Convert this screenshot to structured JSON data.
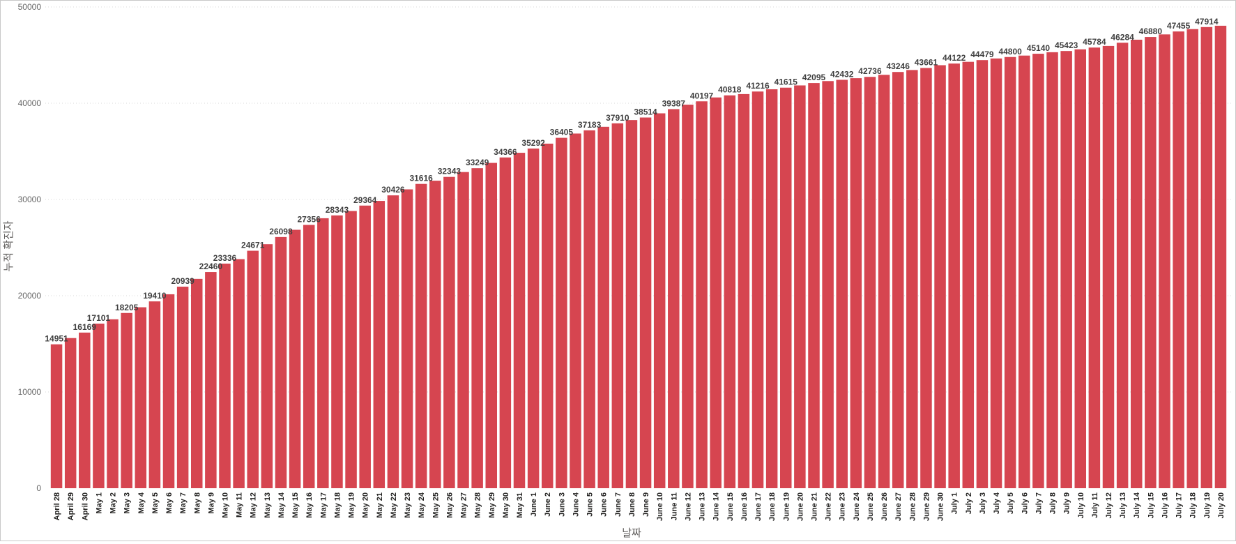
{
  "chart_data": {
    "type": "bar",
    "title": "",
    "xlabel": "날짜",
    "ylabel": "누적 확진자",
    "ylim": [
      0,
      50000
    ],
    "yticks": [
      0,
      10000,
      20000,
      30000,
      40000,
      50000
    ],
    "grid": true,
    "bar_color": "#D64550",
    "categories": [
      "April 28",
      "April 29",
      "April 30",
      "May 1",
      "May 2",
      "May 3",
      "May 4",
      "May 5",
      "May 6",
      "May 7",
      "May 8",
      "May 9",
      "May 10",
      "May 11",
      "May 12",
      "May 13",
      "May 14",
      "May 15",
      "May 16",
      "May 17",
      "May 18",
      "May 19",
      "May 20",
      "May 21",
      "May 22",
      "May 23",
      "May 24",
      "May 25",
      "May 26",
      "May 27",
      "May 28",
      "May 29",
      "May 30",
      "May 31",
      "June 1",
      "June 2",
      "June 3",
      "June 4",
      "June 5",
      "June 6",
      "June 7",
      "June 8",
      "June 9",
      "June 10",
      "June 11",
      "June 12",
      "June 13",
      "June 14",
      "June 15",
      "June 16",
      "June 17",
      "June 18",
      "June 19",
      "June 20",
      "June 21",
      "June 22",
      "June 23",
      "June 24",
      "June 25",
      "June 26",
      "June 27",
      "June 28",
      "June 29",
      "June 30",
      "July 1",
      "July 2",
      "July 3",
      "July 4",
      "July 5",
      "July 6",
      "July 7",
      "July 8",
      "July 9",
      "July 10",
      "July 11",
      "July 12",
      "July 13",
      "July 14",
      "July 15",
      "July 16",
      "July 17",
      "July 18",
      "July 19",
      "July 20"
    ],
    "values": [
      14951,
      15600,
      16169,
      17101,
      17550,
      18205,
      18800,
      19410,
      20150,
      20939,
      21750,
      22460,
      23336,
      23800,
      24671,
      25350,
      26098,
      26850,
      27356,
      28050,
      28343,
      28800,
      29364,
      29850,
      30426,
      31050,
      31616,
      31950,
      32343,
      32850,
      33249,
      33800,
      34366,
      34850,
      35292,
      35800,
      36405,
      36850,
      37183,
      37550,
      37910,
      38250,
      38514,
      38950,
      39387,
      39850,
      40197,
      40600,
      40818,
      40950,
      41216,
      41450,
      41615,
      41850,
      42095,
      42300,
      42432,
      42600,
      42736,
      42950,
      43246,
      43450,
      43661,
      43950,
      44122,
      44300,
      44479,
      44650,
      44800,
      44950,
      45140,
      45300,
      45423,
      45600,
      45784,
      45950,
      46284,
      46600,
      46880,
      47150,
      47455,
      47700,
      47914,
      48050
    ],
    "data_labels": [
      {
        "index": 0,
        "text": "14951"
      },
      {
        "index": 2,
        "text": "16169"
      },
      {
        "index": 3,
        "text": "17101"
      },
      {
        "index": 5,
        "text": "18205"
      },
      {
        "index": 7,
        "text": "19410"
      },
      {
        "index": 9,
        "text": "20939"
      },
      {
        "index": 11,
        "text": "22460"
      },
      {
        "index": 12,
        "text": "23336"
      },
      {
        "index": 14,
        "text": "24671"
      },
      {
        "index": 16,
        "text": "26098"
      },
      {
        "index": 18,
        "text": "27356"
      },
      {
        "index": 20,
        "text": "28343"
      },
      {
        "index": 22,
        "text": "29364"
      },
      {
        "index": 24,
        "text": "30426"
      },
      {
        "index": 26,
        "text": "31616"
      },
      {
        "index": 28,
        "text": "32343"
      },
      {
        "index": 30,
        "text": "33249"
      },
      {
        "index": 32,
        "text": "34366"
      },
      {
        "index": 34,
        "text": "35292"
      },
      {
        "index": 36,
        "text": "36405"
      },
      {
        "index": 38,
        "text": "37183"
      },
      {
        "index": 40,
        "text": "37910"
      },
      {
        "index": 42,
        "text": "38514"
      },
      {
        "index": 44,
        "text": "39387"
      },
      {
        "index": 46,
        "text": "40197"
      },
      {
        "index": 48,
        "text": "40818"
      },
      {
        "index": 50,
        "text": "41216"
      },
      {
        "index": 52,
        "text": "41615"
      },
      {
        "index": 54,
        "text": "42095"
      },
      {
        "index": 56,
        "text": "42432"
      },
      {
        "index": 58,
        "text": "42736"
      },
      {
        "index": 60,
        "text": "43246"
      },
      {
        "index": 62,
        "text": "43661"
      },
      {
        "index": 64,
        "text": "44122"
      },
      {
        "index": 66,
        "text": "44479"
      },
      {
        "index": 68,
        "text": "44800"
      },
      {
        "index": 70,
        "text": "45140"
      },
      {
        "index": 72,
        "text": "45423"
      },
      {
        "index": 74,
        "text": "45784"
      },
      {
        "index": 76,
        "text": "46284"
      },
      {
        "index": 78,
        "text": "46880"
      },
      {
        "index": 80,
        "text": "47455"
      },
      {
        "index": 82,
        "text": "47914"
      }
    ]
  }
}
